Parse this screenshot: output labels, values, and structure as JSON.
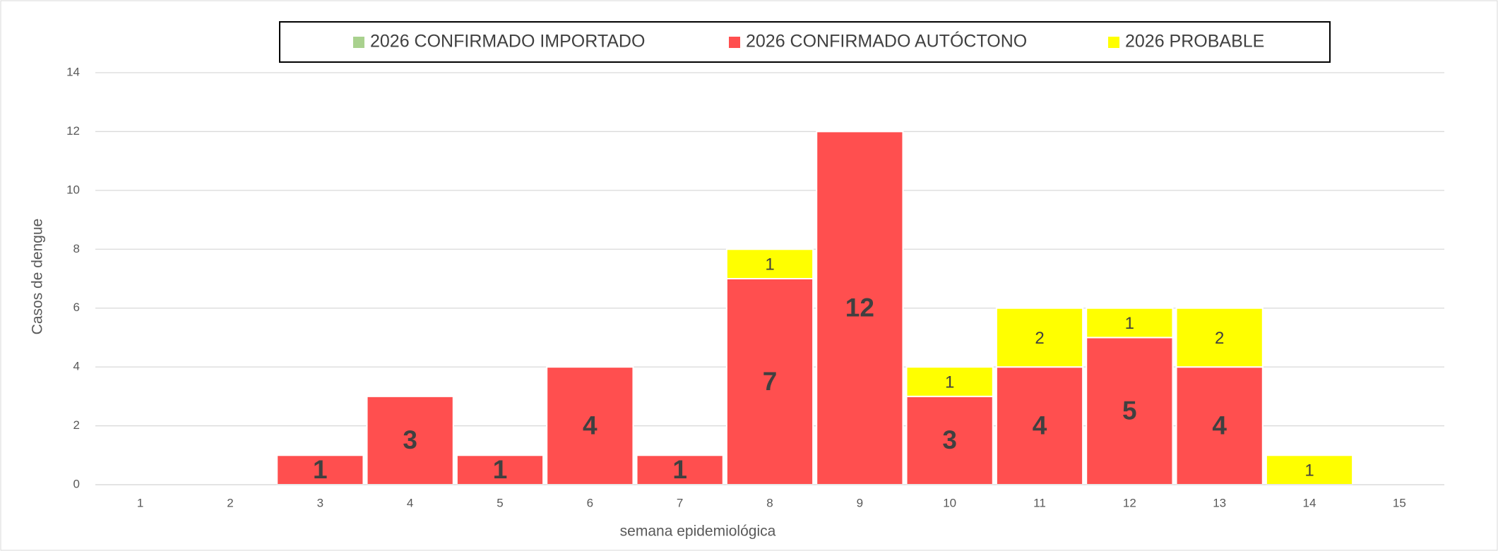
{
  "chart_data": {
    "type": "stacked_bar",
    "x_label": "semana epidemiológica",
    "y_label": "Casos de dengue",
    "categories": [
      "1",
      "2",
      "3",
      "4",
      "5",
      "6",
      "7",
      "8",
      "9",
      "10",
      "11",
      "12",
      "13",
      "14",
      "15"
    ],
    "series": [
      {
        "name": "2026 CONFIRMADO IMPORTADO",
        "color": "#a9d18e",
        "values": [
          0,
          0,
          0,
          0,
          0,
          0,
          0,
          0,
          0,
          0,
          0,
          0,
          0,
          0,
          0
        ]
      },
      {
        "name": "2026 CONFIRMADO AUTÓCTONO",
        "color": "#ff4f4f",
        "values": [
          0,
          0,
          1,
          3,
          1,
          4,
          1,
          7,
          12,
          3,
          4,
          5,
          4,
          0,
          0
        ]
      },
      {
        "name": "2026 PROBABLE",
        "color": "#ffff00",
        "values": [
          0,
          0,
          0,
          0,
          0,
          0,
          0,
          1,
          0,
          1,
          2,
          1,
          2,
          1,
          0
        ]
      }
    ],
    "ylim": [
      0,
      14
    ],
    "yticks": [
      0,
      2,
      4,
      6,
      8,
      10,
      12,
      14
    ],
    "grid": true,
    "legend": "top"
  }
}
